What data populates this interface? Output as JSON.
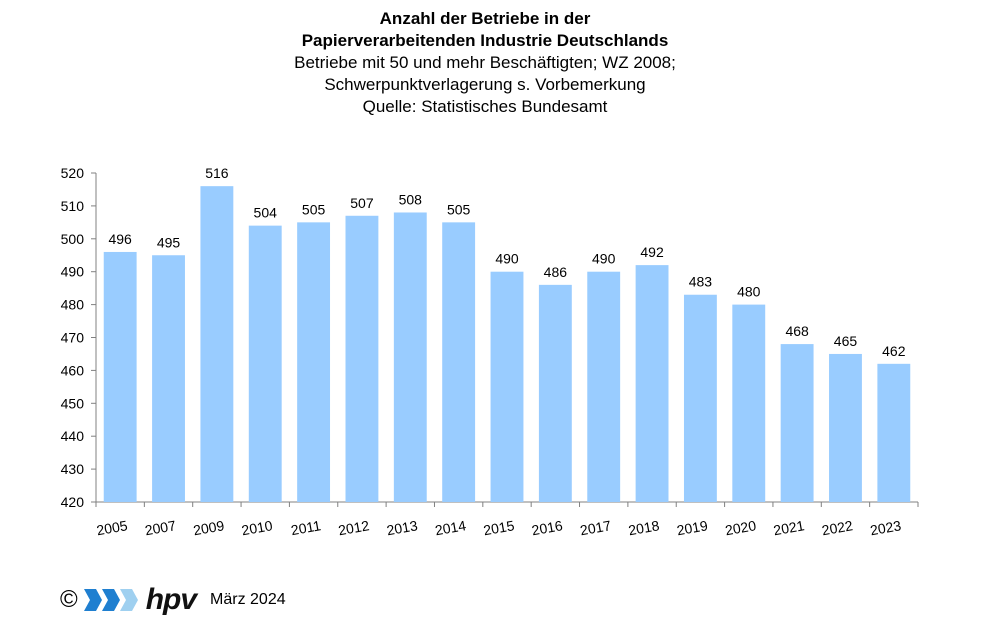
{
  "title": [
    "Anzahl der Betriebe in der",
    "Papierverarbeitenden Industrie Deutschlands"
  ],
  "subtitle": [
    "Betriebe mit 50 und mehr Beschäftigten; WZ 2008;",
    "Schwerpunktverlagerung s. Vorbemerkung",
    "Quelle: Statistisches Bundesamt"
  ],
  "footer": {
    "copyright": "©",
    "logo_text": "hpv",
    "date": "März 2024"
  },
  "colors": {
    "bar": "#99ccff",
    "logo_blue": "#1f7fd0",
    "logo_light": "#9fd0f0"
  },
  "chart_data": {
    "type": "bar",
    "title": "Anzahl der Betriebe in der Papierverarbeitenden Industrie Deutschlands",
    "categories": [
      "2005",
      "2007",
      "2009",
      "2010",
      "2011",
      "2012",
      "2013",
      "2014",
      "2015",
      "2016",
      "2017",
      "2018",
      "2019",
      "2020",
      "2021",
      "2022",
      "2023"
    ],
    "values": [
      496,
      495,
      516,
      504,
      505,
      507,
      508,
      505,
      490,
      486,
      490,
      492,
      483,
      480,
      468,
      465,
      462
    ],
    "ylim": [
      420,
      520
    ],
    "yticks": [
      420,
      430,
      440,
      450,
      460,
      470,
      480,
      490,
      500,
      510,
      520
    ],
    "grid": false,
    "data_labels": true
  }
}
